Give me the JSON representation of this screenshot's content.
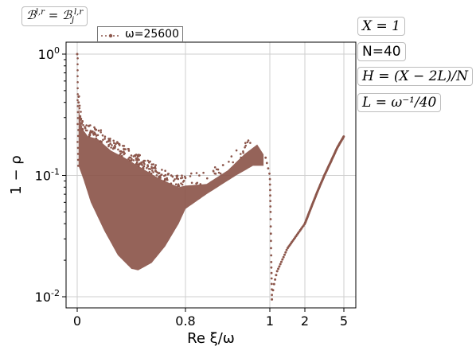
{
  "chart_data": {
    "type": "scatter",
    "title": "",
    "corner_label": "B^{l,r} = B_j^{l,r}",
    "xlabel": "Re ξ/ω",
    "ylabel": "1 − ρ",
    "y_scale": "log",
    "ylim": [
      0.008,
      1.2
    ],
    "x_ticks": [
      "0",
      "0.8",
      "1",
      "2",
      "5"
    ],
    "y_ticks": [
      "10^0",
      "10^-1",
      "10^-2"
    ],
    "y_tick_values": [
      1,
      0.1,
      0.01
    ],
    "grid": true,
    "legend": {
      "position": "top-left",
      "entries": [
        "ω=25600"
      ]
    },
    "marker_color": "#8c564b",
    "series": [
      {
        "name": "ω=25600",
        "upper_envelope": [
          [
            0.0,
            1.0
          ],
          [
            0.01,
            0.4
          ],
          [
            0.02,
            0.3
          ],
          [
            0.04,
            0.24
          ],
          [
            0.08,
            0.21
          ],
          [
            0.15,
            0.2
          ],
          [
            0.25,
            0.16
          ],
          [
            0.35,
            0.14
          ],
          [
            0.45,
            0.12
          ],
          [
            0.6,
            0.095
          ],
          [
            0.75,
            0.08
          ],
          [
            0.85,
            0.085
          ],
          [
            0.9,
            0.11
          ],
          [
            0.94,
            0.15
          ],
          [
            0.97,
            0.18
          ],
          [
            0.99,
            0.14
          ],
          [
            1.0,
            0.1
          ],
          [
            1.02,
            0.05
          ],
          [
            1.04,
            0.02
          ],
          [
            1.06,
            0.01
          ]
        ],
        "lower_envelope": [
          [
            0.01,
            0.12
          ],
          [
            0.05,
            0.09
          ],
          [
            0.1,
            0.06
          ],
          [
            0.2,
            0.035
          ],
          [
            0.3,
            0.022
          ],
          [
            0.4,
            0.017
          ],
          [
            0.45,
            0.0165
          ],
          [
            0.55,
            0.019
          ],
          [
            0.65,
            0.026
          ],
          [
            0.75,
            0.04
          ],
          [
            0.85,
            0.07
          ],
          [
            0.92,
            0.1
          ],
          [
            0.96,
            0.12
          ],
          [
            0.99,
            0.12
          ]
        ],
        "tail": [
          [
            1.06,
            0.0095
          ],
          [
            1.1,
            0.012
          ],
          [
            1.2,
            0.016
          ],
          [
            1.5,
            0.025
          ],
          [
            2.0,
            0.04
          ],
          [
            2.5,
            0.055
          ],
          [
            3.0,
            0.075
          ],
          [
            3.5,
            0.1
          ],
          [
            4.0,
            0.13
          ],
          [
            4.5,
            0.17
          ],
          [
            5.0,
            0.21
          ]
        ]
      }
    ]
  },
  "annotations": {
    "x_value": "X = 1",
    "n_value": "N=40",
    "h_value": "H = (X − 2L)/N",
    "l_value": "L = ω⁻¹/40"
  }
}
